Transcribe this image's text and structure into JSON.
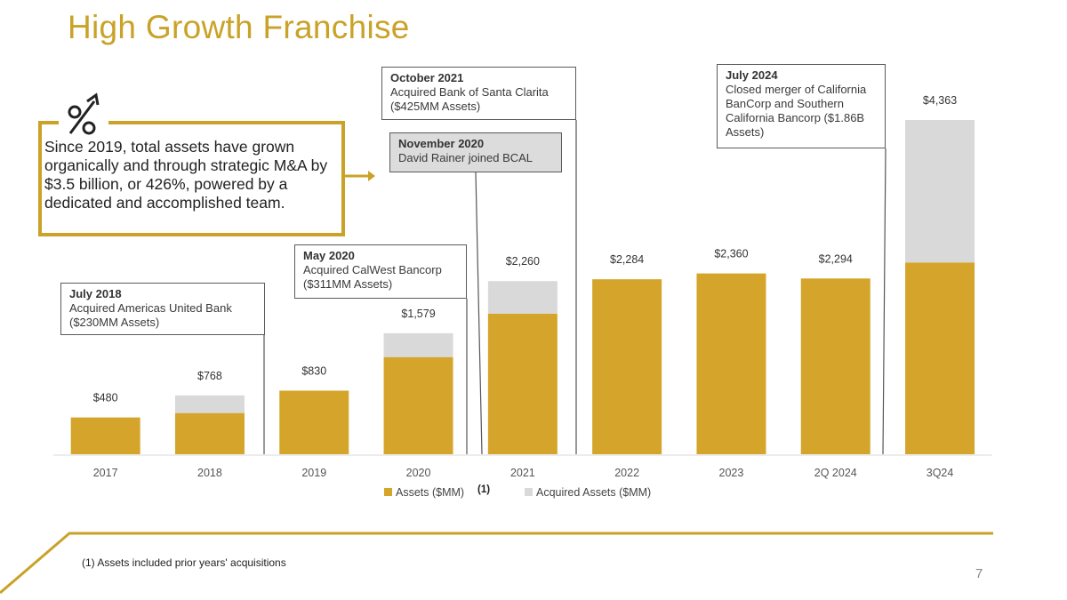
{
  "title": "High Growth Franchise",
  "info": "Since 2019, total assets have grown organically and through strategic M&A by $3.5 billion, or 426%, powered by a dedicated and accomplished team.",
  "callouts": [
    {
      "heading": "July 2018",
      "text": "Acquired Americas United Bank ($230MM Assets)"
    },
    {
      "heading": "May 2020",
      "text": "Acquired CalWest Bancorp ($311MM Assets)"
    },
    {
      "heading": "November 2020",
      "text": "David Rainer joined BCAL"
    },
    {
      "heading": "October 2021",
      "text": "Acquired Bank of Santa Clarita ($425MM Assets)"
    },
    {
      "heading": "July 2024",
      "text": "Closed merger of California BanCorp and Southern California Bancorp ($1.86B Assets)"
    }
  ],
  "footnote": "(1)  Assets included prior years' acquisitions",
  "page_number": "7",
  "colors": {
    "accent": "#c9a227",
    "assets": "#d4a52a",
    "acquired": "#d9d9d9"
  },
  "chart_data": {
    "type": "bar",
    "stacked": true,
    "categories": [
      "2017",
      "2018",
      "2019",
      "2020",
      "2021",
      "2022",
      "2023",
      "2Q 2024",
      "3Q24"
    ],
    "series": [
      {
        "name": "Assets ($MM)",
        "values": [
          480,
          538,
          830,
          1268,
          1835,
          2284,
          2360,
          2294,
          2503
        ]
      },
      {
        "name": "Acquired Assets ($MM)",
        "values": [
          0,
          230,
          0,
          311,
          425,
          0,
          0,
          0,
          1860
        ]
      }
    ],
    "totals": [
      "$480",
      "$768",
      "$830",
      "$1,579",
      "$2,260",
      "$2,284",
      "$2,360",
      "$2,294",
      "$4,363"
    ],
    "legend_note": "(1)",
    "ylim": [
      0,
      4500
    ],
    "legend": "bottom"
  }
}
